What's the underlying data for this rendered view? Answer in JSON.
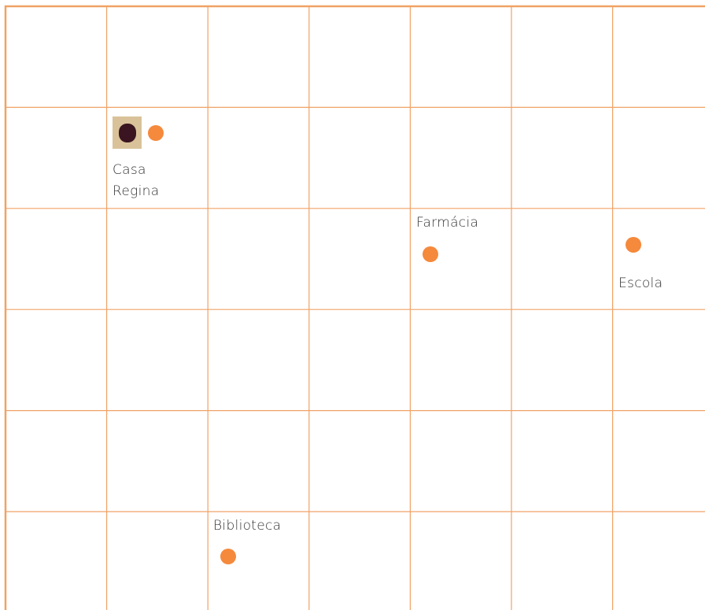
{
  "places": [
    {
      "label": "Casa Regina"
    },
    {
      "label": "Farmácia"
    },
    {
      "label": "Escola"
    },
    {
      "label": "Biblioteca"
    }
  ]
}
